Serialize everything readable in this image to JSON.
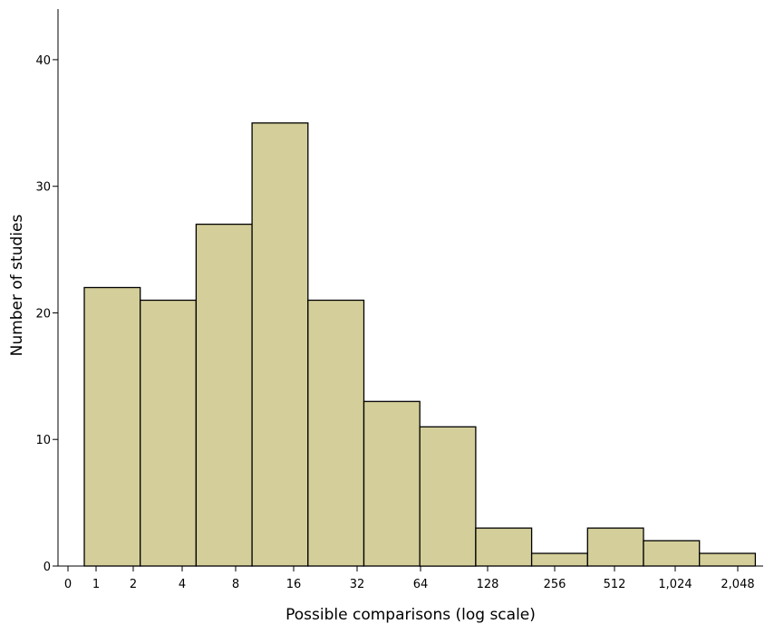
{
  "chart_data": {
    "type": "bar",
    "title": "",
    "xlabel": "Possible comparisons (log scale)",
    "ylabel": "Number of studies",
    "x_scale": "log2",
    "x_ticks": [
      "0",
      "1",
      "2",
      "4",
      "8",
      "16",
      "32",
      "64",
      "128",
      "256",
      "512",
      "1,024",
      "2,048"
    ],
    "y_ticks": [
      "0",
      "10",
      "20",
      "30",
      "40"
    ],
    "ylim": [
      0,
      44
    ],
    "grid": false,
    "bar_color": "#d4cf9a",
    "bar_edge_color": "#000000",
    "bins": [
      {
        "from": 1,
        "to": 2,
        "value": 22
      },
      {
        "from": 2,
        "to": 4,
        "value": 21
      },
      {
        "from": 4,
        "to": 8,
        "value": 27
      },
      {
        "from": 8,
        "to": 16,
        "value": 35
      },
      {
        "from": 16,
        "to": 32,
        "value": 21
      },
      {
        "from": 32,
        "to": 64,
        "value": 13
      },
      {
        "from": 64,
        "to": 128,
        "value": 11
      },
      {
        "from": 128,
        "to": 256,
        "value": 3
      },
      {
        "from": 256,
        "to": 512,
        "value": 1
      },
      {
        "from": 512,
        "to": 1024,
        "value": 3
      },
      {
        "from": 1024,
        "to": 2048,
        "value": 2
      },
      {
        "from": 2048,
        "to": 4096,
        "value": 1
      }
    ]
  }
}
